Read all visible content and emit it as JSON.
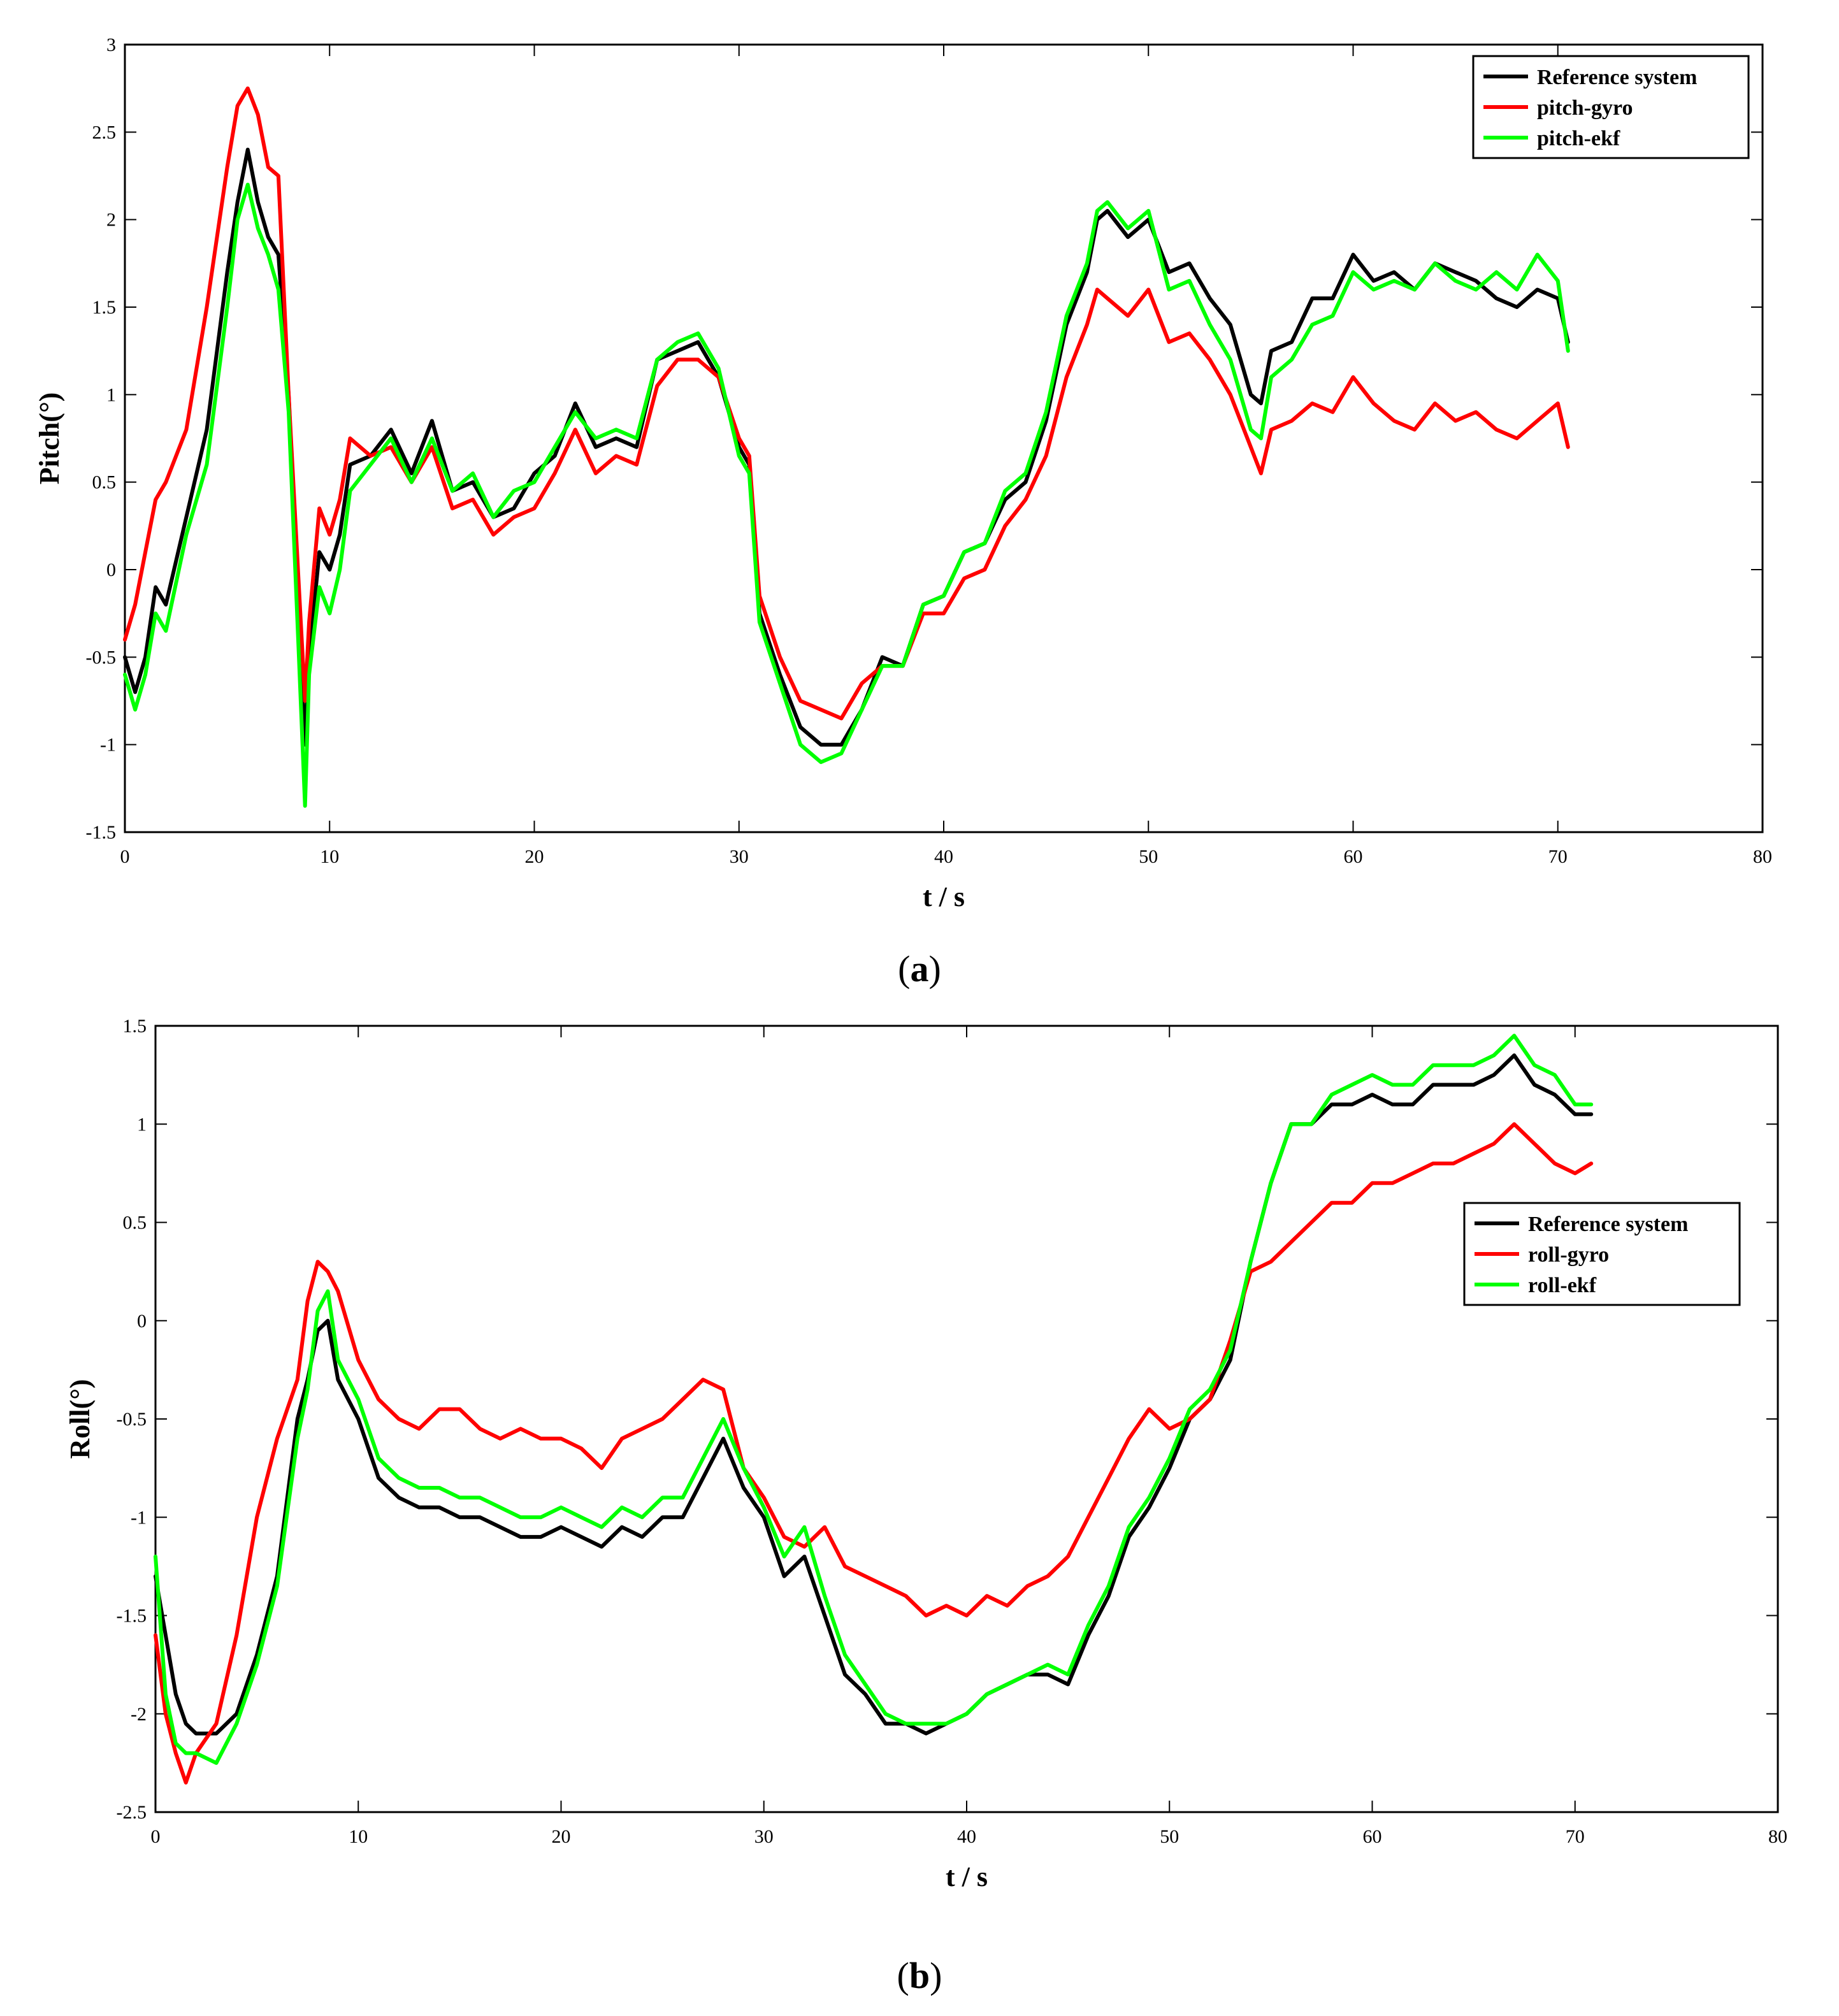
{
  "colors": {
    "reference": "#000000",
    "gyro": "#ff0000",
    "ekf": "#00ff00"
  },
  "panels": [
    {
      "label_prefix": "(",
      "label_letter": "a",
      "label_suffix": ")"
    },
    {
      "label_prefix": "(",
      "label_letter": "b",
      "label_suffix": ")"
    }
  ],
  "chart_data": [
    {
      "type": "line",
      "title": "",
      "xlabel": "t / s",
      "ylabel": "Pitch(°)",
      "xlim": [
        0,
        80
      ],
      "ylim": [
        -1.5,
        3
      ],
      "xticks": [
        0,
        10,
        20,
        30,
        40,
        50,
        60,
        70,
        80
      ],
      "yticks": [
        -1.5,
        -1,
        -0.5,
        0,
        0.5,
        1,
        1.5,
        2,
        2.5,
        3
      ],
      "grid": false,
      "legend_position": "top-right",
      "x": [
        0,
        0.5,
        1,
        1.5,
        2,
        3,
        4,
        5,
        5.5,
        6,
        6.5,
        7,
        7.5,
        8,
        8.5,
        8.8,
        9,
        9.5,
        10,
        10.5,
        11,
        12,
        13,
        14,
        15,
        16,
        17,
        18,
        19,
        20,
        21,
        22,
        23,
        24,
        25,
        26,
        27,
        28,
        29,
        30,
        30.5,
        31,
        32,
        33,
        34,
        35,
        36,
        37,
        38,
        39,
        40,
        41,
        42,
        43,
        44,
        45,
        46,
        47,
        47.5,
        48,
        49,
        50,
        51,
        52,
        53,
        54,
        55,
        55.5,
        56,
        57,
        58,
        59,
        60,
        61,
        62,
        63,
        64,
        65,
        66,
        67,
        68,
        69,
        70,
        70.5
      ],
      "series": [
        {
          "name": "Reference system",
          "values": [
            -0.5,
            -0.7,
            -0.5,
            -0.1,
            -0.2,
            0.3,
            0.8,
            1.7,
            2.1,
            2.4,
            2.1,
            1.9,
            1.8,
            1.0,
            -0.3,
            -1.0,
            -0.5,
            0.1,
            0.0,
            0.2,
            0.6,
            0.65,
            0.8,
            0.55,
            0.85,
            0.45,
            0.5,
            0.3,
            0.35,
            0.55,
            0.65,
            0.95,
            0.7,
            0.75,
            0.7,
            1.2,
            1.25,
            1.3,
            1.1,
            0.7,
            0.6,
            -0.25,
            -0.6,
            -0.9,
            -1.0,
            -1.0,
            -0.8,
            -0.5,
            -0.55,
            -0.2,
            -0.15,
            0.1,
            0.15,
            0.4,
            0.5,
            0.85,
            1.4,
            1.7,
            2.0,
            2.05,
            1.9,
            2.0,
            1.7,
            1.75,
            1.55,
            1.4,
            1.0,
            0.95,
            1.25,
            1.3,
            1.55,
            1.55,
            1.8,
            1.65,
            1.7,
            1.6,
            1.75,
            1.7,
            1.65,
            1.55,
            1.5,
            1.6,
            1.55,
            1.3
          ]
        },
        {
          "name": "pitch-gyro",
          "values": [
            -0.4,
            -0.2,
            0.1,
            0.4,
            0.5,
            0.8,
            1.5,
            2.3,
            2.65,
            2.75,
            2.6,
            2.3,
            2.25,
            1.0,
            -0.1,
            -0.75,
            -0.3,
            0.35,
            0.2,
            0.4,
            0.75,
            0.65,
            0.7,
            0.5,
            0.7,
            0.35,
            0.4,
            0.2,
            0.3,
            0.35,
            0.55,
            0.8,
            0.55,
            0.65,
            0.6,
            1.05,
            1.2,
            1.2,
            1.1,
            0.75,
            0.65,
            -0.15,
            -0.5,
            -0.75,
            -0.8,
            -0.85,
            -0.65,
            -0.55,
            -0.55,
            -0.25,
            -0.25,
            -0.05,
            0.0,
            0.25,
            0.4,
            0.65,
            1.1,
            1.4,
            1.6,
            1.55,
            1.45,
            1.6,
            1.3,
            1.35,
            1.2,
            1.0,
            0.7,
            0.55,
            0.8,
            0.85,
            0.95,
            0.9,
            1.1,
            0.95,
            0.85,
            0.8,
            0.95,
            0.85,
            0.9,
            0.8,
            0.75,
            0.85,
            0.95,
            0.7
          ]
        },
        {
          "name": "pitch-ekf",
          "values": [
            -0.6,
            -0.8,
            -0.6,
            -0.25,
            -0.35,
            0.2,
            0.6,
            1.5,
            2.0,
            2.2,
            1.95,
            1.8,
            1.6,
            0.9,
            -0.5,
            -1.35,
            -0.6,
            -0.1,
            -0.25,
            0.0,
            0.45,
            0.6,
            0.75,
            0.5,
            0.75,
            0.45,
            0.55,
            0.3,
            0.45,
            0.5,
            0.7,
            0.9,
            0.75,
            0.8,
            0.75,
            1.2,
            1.3,
            1.35,
            1.15,
            0.65,
            0.55,
            -0.3,
            -0.65,
            -1.0,
            -1.1,
            -1.05,
            -0.8,
            -0.55,
            -0.55,
            -0.2,
            -0.15,
            0.1,
            0.15,
            0.45,
            0.55,
            0.9,
            1.45,
            1.75,
            2.05,
            2.1,
            1.95,
            2.05,
            1.6,
            1.65,
            1.4,
            1.2,
            0.8,
            0.75,
            1.1,
            1.2,
            1.4,
            1.45,
            1.7,
            1.6,
            1.65,
            1.6,
            1.75,
            1.65,
            1.6,
            1.7,
            1.6,
            1.8,
            1.65,
            1.25
          ]
        }
      ]
    },
    {
      "type": "line",
      "title": "",
      "xlabel": "t / s",
      "ylabel": "Roll(°)",
      "xlim": [
        0,
        80
      ],
      "ylim": [
        -2.5,
        1.5
      ],
      "xticks": [
        0,
        10,
        20,
        30,
        40,
        50,
        60,
        70,
        80
      ],
      "yticks": [
        -2.5,
        -2,
        -1.5,
        -1,
        -0.5,
        0,
        0.5,
        1,
        1.5
      ],
      "grid": false,
      "legend_position": "center-right",
      "x": [
        0,
        0.5,
        1,
        1.5,
        2,
        3,
        4,
        5,
        6,
        7,
        7.5,
        8,
        8.5,
        9,
        10,
        11,
        12,
        13,
        14,
        15,
        16,
        17,
        18,
        19,
        20,
        21,
        22,
        23,
        24,
        25,
        26,
        27,
        28,
        29,
        30,
        31,
        32,
        33,
        34,
        35,
        36,
        37,
        38,
        39,
        40,
        41,
        42,
        43,
        44,
        45,
        46,
        47,
        48,
        49,
        50,
        51,
        52,
        53,
        54,
        55,
        56,
        57,
        58,
        59,
        60,
        61,
        62,
        63,
        64,
        65,
        66,
        67,
        68,
        69,
        70,
        70.8
      ],
      "series": [
        {
          "name": "Reference system",
          "values": [
            -1.3,
            -1.6,
            -1.9,
            -2.05,
            -2.1,
            -2.1,
            -2.0,
            -1.7,
            -1.3,
            -0.5,
            -0.3,
            -0.05,
            0.0,
            -0.3,
            -0.5,
            -0.8,
            -0.9,
            -0.95,
            -0.95,
            -1.0,
            -1.0,
            -1.05,
            -1.1,
            -1.1,
            -1.05,
            -1.1,
            -1.15,
            -1.05,
            -1.1,
            -1.0,
            -1.0,
            -0.8,
            -0.6,
            -0.85,
            -1.0,
            -1.3,
            -1.2,
            -1.5,
            -1.8,
            -1.9,
            -2.05,
            -2.05,
            -2.1,
            -2.05,
            -2.0,
            -1.9,
            -1.85,
            -1.8,
            -1.8,
            -1.85,
            -1.6,
            -1.4,
            -1.1,
            -0.95,
            -0.75,
            -0.5,
            -0.4,
            -0.2,
            0.3,
            0.7,
            1.0,
            1.0,
            1.1,
            1.1,
            1.15,
            1.1,
            1.1,
            1.2,
            1.2,
            1.2,
            1.25,
            1.35,
            1.2,
            1.15,
            1.05,
            1.05
          ]
        },
        {
          "name": "roll-gyro",
          "values": [
            -1.6,
            -2.0,
            -2.2,
            -2.35,
            -2.2,
            -2.05,
            -1.6,
            -1.0,
            -0.6,
            -0.3,
            0.1,
            0.3,
            0.25,
            0.15,
            -0.2,
            -0.4,
            -0.5,
            -0.55,
            -0.45,
            -0.45,
            -0.55,
            -0.6,
            -0.55,
            -0.6,
            -0.6,
            -0.65,
            -0.75,
            -0.6,
            -0.55,
            -0.5,
            -0.4,
            -0.3,
            -0.35,
            -0.75,
            -0.9,
            -1.1,
            -1.15,
            -1.05,
            -1.25,
            -1.3,
            -1.35,
            -1.4,
            -1.5,
            -1.45,
            -1.5,
            -1.4,
            -1.45,
            -1.35,
            -1.3,
            -1.2,
            -1.0,
            -0.8,
            -0.6,
            -0.45,
            -0.55,
            -0.5,
            -0.4,
            -0.1,
            0.25,
            0.3,
            0.4,
            0.5,
            0.6,
            0.6,
            0.7,
            0.7,
            0.75,
            0.8,
            0.8,
            0.85,
            0.9,
            1.0,
            0.9,
            0.8,
            0.75,
            0.8
          ]
        },
        {
          "name": "roll-ekf",
          "values": [
            -1.2,
            -1.9,
            -2.15,
            -2.2,
            -2.2,
            -2.25,
            -2.05,
            -1.75,
            -1.35,
            -0.6,
            -0.35,
            0.05,
            0.15,
            -0.2,
            -0.4,
            -0.7,
            -0.8,
            -0.85,
            -0.85,
            -0.9,
            -0.9,
            -0.95,
            -1.0,
            -1.0,
            -0.95,
            -1.0,
            -1.05,
            -0.95,
            -1.0,
            -0.9,
            -0.9,
            -0.7,
            -0.5,
            -0.75,
            -0.95,
            -1.2,
            -1.05,
            -1.4,
            -1.7,
            -1.85,
            -2.0,
            -2.05,
            -2.05,
            -2.05,
            -2.0,
            -1.9,
            -1.85,
            -1.8,
            -1.75,
            -1.8,
            -1.55,
            -1.35,
            -1.05,
            -0.9,
            -0.7,
            -0.45,
            -0.35,
            -0.15,
            0.3,
            0.7,
            1.0,
            1.0,
            1.15,
            1.2,
            1.25,
            1.2,
            1.2,
            1.3,
            1.3,
            1.3,
            1.35,
            1.45,
            1.3,
            1.25,
            1.1,
            1.1
          ]
        }
      ]
    }
  ]
}
